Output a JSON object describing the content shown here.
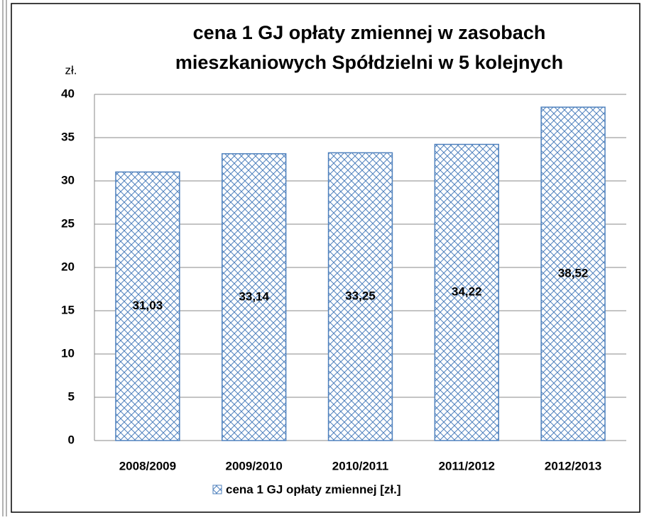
{
  "chart_data": {
    "type": "bar",
    "title": [
      "cena 1 GJ opłaty zmiennej w zasobach",
      "mieszkaniowych Spółdzielni w 5 kolejnych"
    ],
    "y_axis_label": "zł.",
    "categories": [
      "2008/2009",
      "2009/2010",
      "2010/2011",
      "2011/2012",
      "2012/2013"
    ],
    "series": [
      {
        "name": "cena 1 GJ opłaty zmiennej [zł.]",
        "color": "#4f81bd",
        "values": [
          31.03,
          33.14,
          33.25,
          34.22,
          38.52
        ],
        "value_labels": [
          "31,03",
          "33,14",
          "33,25",
          "34,22",
          "38,52"
        ]
      }
    ],
    "ylim": [
      0,
      40
    ],
    "yticks": [
      0,
      5,
      10,
      15,
      20,
      25,
      30,
      35,
      40
    ],
    "grid": true,
    "legend": "bottom"
  }
}
